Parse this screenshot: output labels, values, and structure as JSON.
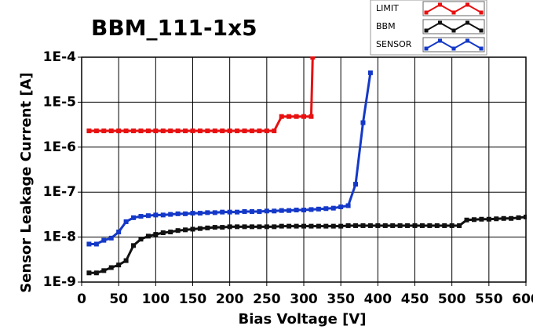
{
  "chart_data": {
    "type": "line",
    "title": "BBM_111-1x5",
    "xlabel": "Bias Voltage [V]",
    "ylabel": "Sensor Leakage Current [A]",
    "xlim": [
      0,
      600
    ],
    "xticks": [
      0,
      50,
      100,
      150,
      200,
      250,
      300,
      350,
      400,
      450,
      500,
      550,
      600
    ],
    "ylim": [
      1e-09,
      0.0001
    ],
    "yscale": "log",
    "yticks": [
      {
        "value": 1e-09,
        "label": "1E-9"
      },
      {
        "value": 1e-08,
        "label": "1E-8"
      },
      {
        "value": 1e-07,
        "label": "1E-7"
      },
      {
        "value": 1e-06,
        "label": "1E-6"
      },
      {
        "value": 1e-05,
        "label": "1E-5"
      },
      {
        "value": 0.0001,
        "label": "1E-4"
      }
    ],
    "grid": true,
    "legend": "top-right",
    "series": [
      {
        "name": "LIMIT",
        "color": "#e81010",
        "x": [
          10,
          20,
          30,
          40,
          50,
          60,
          70,
          80,
          90,
          100,
          110,
          120,
          130,
          140,
          150,
          160,
          170,
          180,
          190,
          200,
          210,
          220,
          230,
          240,
          250,
          260,
          270,
          280,
          290,
          300,
          310,
          312
        ],
        "values": [
          2.3e-06,
          2.3e-06,
          2.3e-06,
          2.3e-06,
          2.3e-06,
          2.3e-06,
          2.3e-06,
          2.3e-06,
          2.3e-06,
          2.3e-06,
          2.3e-06,
          2.3e-06,
          2.3e-06,
          2.3e-06,
          2.3e-06,
          2.3e-06,
          2.3e-06,
          2.3e-06,
          2.3e-06,
          2.3e-06,
          2.3e-06,
          2.3e-06,
          2.3e-06,
          2.3e-06,
          2.3e-06,
          2.3e-06,
          4.8e-06,
          4.8e-06,
          4.8e-06,
          4.8e-06,
          4.8e-06,
          0.0001
        ]
      },
      {
        "name": "BBM",
        "color": "#111111",
        "x": [
          10,
          20,
          30,
          40,
          50,
          60,
          70,
          80,
          90,
          100,
          110,
          120,
          130,
          140,
          150,
          160,
          170,
          180,
          190,
          200,
          210,
          220,
          230,
          240,
          250,
          260,
          270,
          280,
          290,
          300,
          310,
          320,
          330,
          340,
          350,
          360,
          370,
          380,
          390,
          400,
          410,
          420,
          430,
          440,
          450,
          460,
          470,
          480,
          490,
          500,
          510,
          520,
          530,
          540,
          550,
          560,
          570,
          580,
          590,
          600
        ],
        "values": [
          1.6e-09,
          1.6e-09,
          1.8e-09,
          2.1e-09,
          2.4e-09,
          3e-09,
          6.5e-09,
          9e-09,
          1.05e-08,
          1.15e-08,
          1.25e-08,
          1.3e-08,
          1.4e-08,
          1.45e-08,
          1.5e-08,
          1.55e-08,
          1.6e-08,
          1.65e-08,
          1.65e-08,
          1.7e-08,
          1.7e-08,
          1.7e-08,
          1.7e-08,
          1.7e-08,
          1.7e-08,
          1.7e-08,
          1.75e-08,
          1.75e-08,
          1.75e-08,
          1.75e-08,
          1.75e-08,
          1.75e-08,
          1.75e-08,
          1.75e-08,
          1.75e-08,
          1.8e-08,
          1.8e-08,
          1.8e-08,
          1.8e-08,
          1.8e-08,
          1.8e-08,
          1.8e-08,
          1.8e-08,
          1.8e-08,
          1.8e-08,
          1.8e-08,
          1.8e-08,
          1.8e-08,
          1.8e-08,
          1.8e-08,
          1.8e-08,
          2.4e-08,
          2.45e-08,
          2.5e-08,
          2.5e-08,
          2.55e-08,
          2.6e-08,
          2.6e-08,
          2.7e-08,
          2.8e-08
        ]
      },
      {
        "name": "SENSOR",
        "color": "#1438c8",
        "x": [
          10,
          20,
          30,
          40,
          50,
          60,
          70,
          80,
          90,
          100,
          110,
          120,
          130,
          140,
          150,
          160,
          170,
          180,
          190,
          200,
          210,
          220,
          230,
          240,
          250,
          260,
          270,
          280,
          290,
          300,
          310,
          320,
          330,
          340,
          350,
          360,
          370,
          380,
          390
        ],
        "values": [
          7e-09,
          7e-09,
          8.5e-09,
          9.5e-09,
          1.3e-08,
          2.2e-08,
          2.7e-08,
          2.9e-08,
          3e-08,
          3.1e-08,
          3.1e-08,
          3.2e-08,
          3.3e-08,
          3.3e-08,
          3.4e-08,
          3.4e-08,
          3.5e-08,
          3.5e-08,
          3.6e-08,
          3.6e-08,
          3.6e-08,
          3.7e-08,
          3.7e-08,
          3.7e-08,
          3.8e-08,
          3.8e-08,
          3.9e-08,
          3.9e-08,
          4e-08,
          4e-08,
          4.1e-08,
          4.2e-08,
          4.3e-08,
          4.4e-08,
          4.7e-08,
          5e-08,
          1.5e-07,
          3.5e-06,
          4.5e-05
        ]
      }
    ]
  }
}
